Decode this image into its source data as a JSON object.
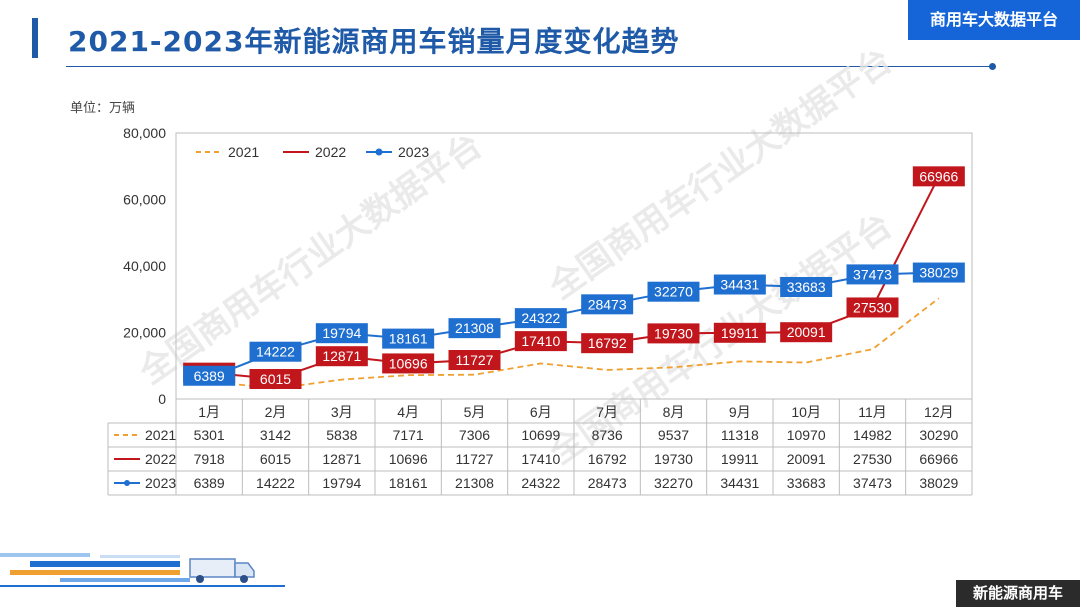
{
  "page": {
    "title": "2021-2023年新能源商用车销量月度变化趋势",
    "brand": "商用车大数据平台",
    "footer_tag": "新能源商用车",
    "unit": "单位：万辆",
    "watermark": "全国商用车行业大数据平台"
  },
  "colors": {
    "s2021": "#f0a030",
    "s2022": "#c0161c",
    "s2023": "#1f6fd0",
    "title": "#1f5aa8"
  },
  "chart_data": {
    "type": "line",
    "title": "2021-2023年新能源商用车销量月度变化趋势",
    "ylabel": "单位：万辆",
    "ylim": [
      0,
      80000
    ],
    "yticks": [
      "0",
      "20,000",
      "40,000",
      "60,000",
      "80,000"
    ],
    "ytick_values": [
      0,
      20000,
      40000,
      60000,
      80000
    ],
    "legend_position": "top-left",
    "grid": false,
    "categories": [
      "1月",
      "2月",
      "3月",
      "4月",
      "5月",
      "6月",
      "7月",
      "8月",
      "9月",
      "10月",
      "11月",
      "12月"
    ],
    "series": [
      {
        "name": "2021",
        "style": "dashed",
        "labels_shown": false,
        "values": [
          5301,
          3142,
          5838,
          7171,
          7306,
          10699,
          8736,
          9537,
          11318,
          10970,
          14982,
          30290
        ]
      },
      {
        "name": "2022",
        "style": "solid",
        "labels_shown": true,
        "values": [
          7918,
          6015,
          12871,
          10696,
          11727,
          17410,
          16792,
          19730,
          19911,
          20091,
          27530,
          66966
        ]
      },
      {
        "name": "2023",
        "style": "solid-marker",
        "labels_shown": true,
        "values": [
          6389,
          14222,
          19794,
          18161,
          21308,
          24322,
          28473,
          32270,
          34431,
          33683,
          37473,
          38029
        ]
      }
    ]
  }
}
